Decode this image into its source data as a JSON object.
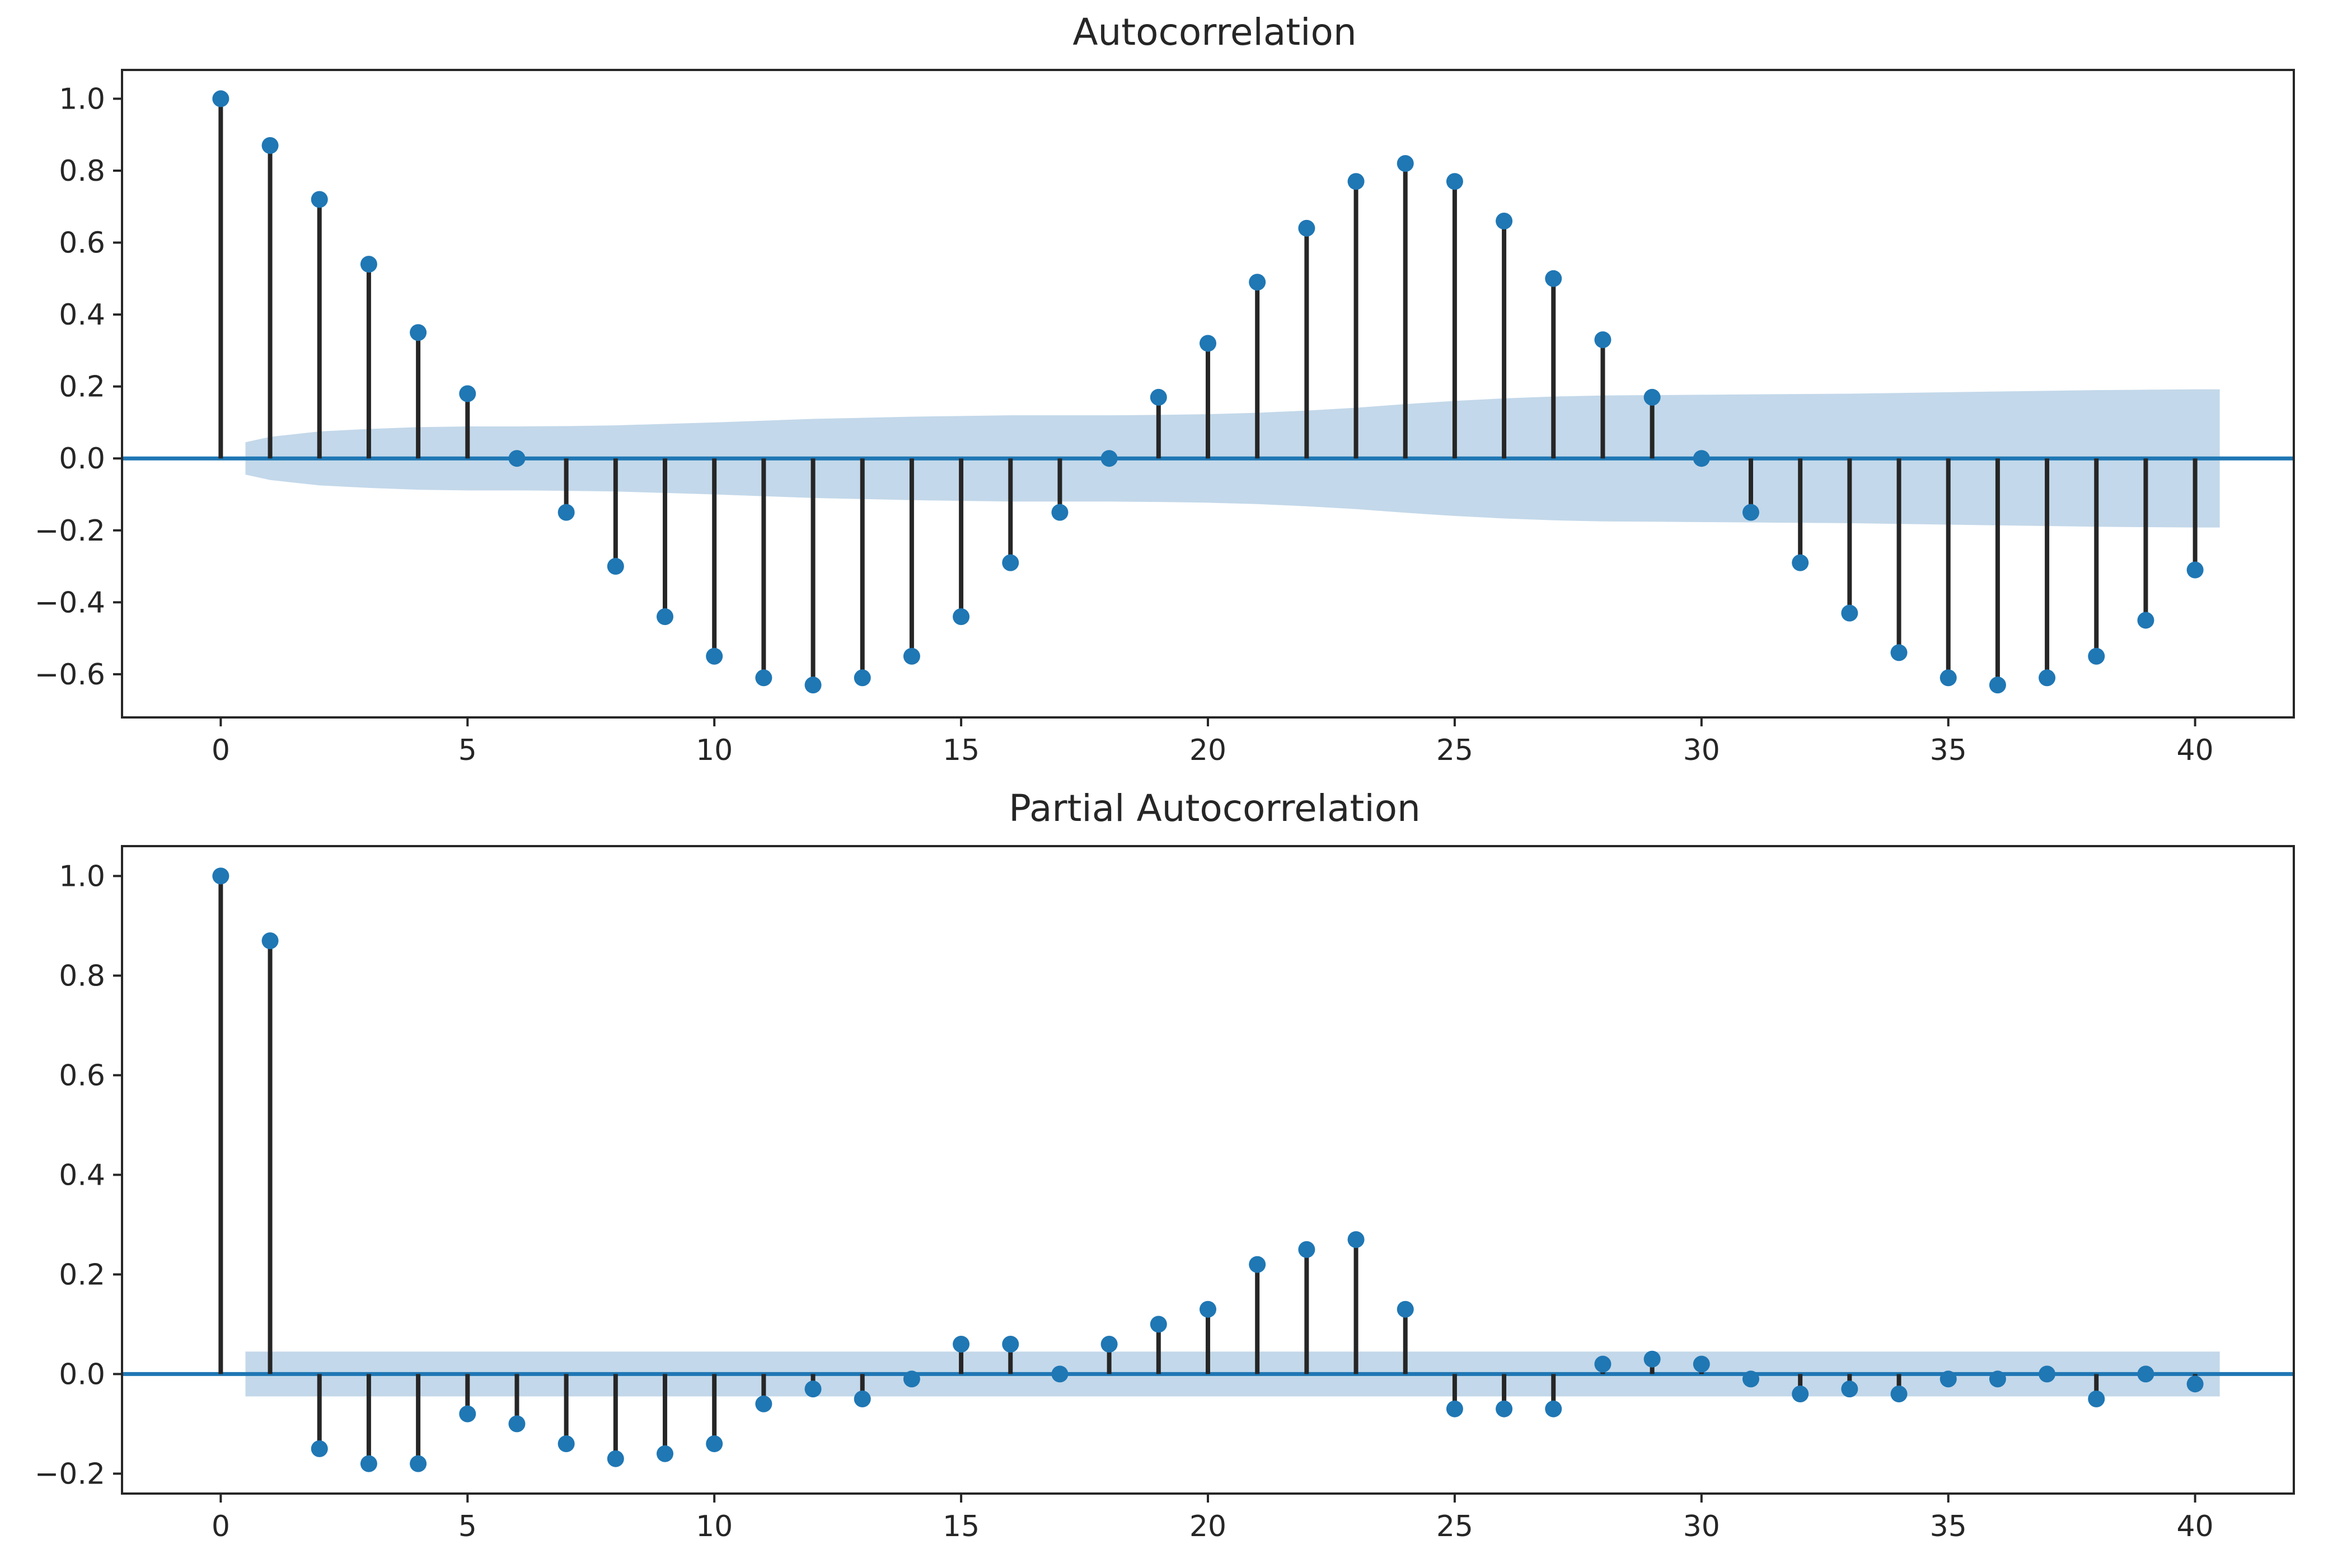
{
  "colors": {
    "marker": "#1f77b4",
    "stem": "#262626",
    "baseline": "#1f77b4",
    "band": "#c3d8ea",
    "axes": "#262626",
    "background": "#ffffff"
  },
  "chart_data": [
    {
      "type": "stem",
      "title": "Autocorrelation",
      "xlabel": "",
      "ylabel": "",
      "xlim": [
        -2,
        42
      ],
      "ylim": [
        -0.72,
        1.08
      ],
      "xticks": [
        0,
        5,
        10,
        15,
        20,
        25,
        30,
        35,
        40
      ],
      "yticks": [
        -0.6,
        -0.4,
        -0.2,
        0.0,
        0.2,
        0.4,
        0.6,
        0.8,
        1.0
      ],
      "ytick_labels": [
        "−0.6",
        "−0.4",
        "−0.2",
        "0.0",
        "0.2",
        "0.4",
        "0.6",
        "0.8",
        "1.0"
      ],
      "xtick_labels": [
        "0",
        "5",
        "10",
        "15",
        "20",
        "25",
        "30",
        "35",
        "40"
      ],
      "lags": [
        0,
        1,
        2,
        3,
        4,
        5,
        6,
        7,
        8,
        9,
        10,
        11,
        12,
        13,
        14,
        15,
        16,
        17,
        18,
        19,
        20,
        21,
        22,
        23,
        24,
        25,
        26,
        27,
        28,
        29,
        30,
        31,
        32,
        33,
        34,
        35,
        36,
        37,
        38,
        39,
        40
      ],
      "values": [
        1.0,
        0.87,
        0.72,
        0.54,
        0.35,
        0.18,
        0.0,
        -0.15,
        -0.3,
        -0.44,
        -0.55,
        -0.61,
        -0.63,
        -0.61,
        -0.55,
        -0.44,
        -0.29,
        -0.15,
        0.0,
        0.17,
        0.32,
        0.49,
        0.64,
        0.77,
        0.82,
        0.77,
        0.66,
        0.5,
        0.33,
        0.17,
        0.0,
        -0.15,
        -0.29,
        -0.43,
        -0.54,
        -0.61,
        -0.63,
        -0.61,
        -0.55,
        -0.45,
        -0.31
      ],
      "confidence_band": {
        "lags": [
          0.5,
          1,
          2,
          3,
          4,
          5,
          6,
          7,
          8,
          9,
          10,
          11,
          12,
          13,
          14,
          15,
          16,
          17,
          18,
          19,
          20,
          21,
          22,
          23,
          24,
          25,
          26,
          27,
          28,
          29,
          30,
          31,
          32,
          33,
          34,
          35,
          36,
          37,
          38,
          39,
          40,
          40.5
        ],
        "upper": [
          0.045,
          0.06,
          0.075,
          0.082,
          0.087,
          0.089,
          0.089,
          0.09,
          0.092,
          0.096,
          0.1,
          0.105,
          0.11,
          0.113,
          0.116,
          0.118,
          0.12,
          0.12,
          0.12,
          0.121,
          0.123,
          0.127,
          0.133,
          0.141,
          0.151,
          0.16,
          0.167,
          0.172,
          0.175,
          0.176,
          0.177,
          0.178,
          0.179,
          0.18,
          0.182,
          0.184,
          0.186,
          0.188,
          0.19,
          0.191,
          0.192,
          0.192
        ],
        "lower": [
          -0.045,
          -0.06,
          -0.075,
          -0.082,
          -0.087,
          -0.089,
          -0.089,
          -0.09,
          -0.092,
          -0.096,
          -0.1,
          -0.105,
          -0.11,
          -0.113,
          -0.116,
          -0.118,
          -0.12,
          -0.12,
          -0.12,
          -0.121,
          -0.123,
          -0.127,
          -0.133,
          -0.141,
          -0.151,
          -0.16,
          -0.167,
          -0.172,
          -0.175,
          -0.176,
          -0.177,
          -0.178,
          -0.179,
          -0.18,
          -0.182,
          -0.184,
          -0.186,
          -0.188,
          -0.19,
          -0.191,
          -0.192,
          -0.192
        ]
      },
      "grid": false,
      "legend": "none"
    },
    {
      "type": "stem",
      "title": "Partial Autocorrelation",
      "xlabel": "",
      "ylabel": "",
      "xlim": [
        -2,
        42
      ],
      "ylim": [
        -0.24,
        1.06
      ],
      "xticks": [
        0,
        5,
        10,
        15,
        20,
        25,
        30,
        35,
        40
      ],
      "yticks": [
        -0.2,
        0.0,
        0.2,
        0.4,
        0.6,
        0.8,
        1.0
      ],
      "ytick_labels": [
        "−0.2",
        "0.0",
        "0.2",
        "0.4",
        "0.6",
        "0.8",
        "1.0"
      ],
      "xtick_labels": [
        "0",
        "5",
        "10",
        "15",
        "20",
        "25",
        "30",
        "35",
        "40"
      ],
      "lags": [
        0,
        1,
        2,
        3,
        4,
        5,
        6,
        7,
        8,
        9,
        10,
        11,
        12,
        13,
        14,
        15,
        16,
        17,
        18,
        19,
        20,
        21,
        22,
        23,
        24,
        25,
        26,
        27,
        28,
        29,
        30,
        31,
        32,
        33,
        34,
        35,
        36,
        37,
        38,
        39,
        40
      ],
      "values": [
        1.0,
        0.87,
        -0.15,
        -0.18,
        -0.18,
        -0.08,
        -0.1,
        -0.14,
        -0.17,
        -0.16,
        -0.14,
        -0.06,
        -0.03,
        -0.05,
        -0.01,
        0.06,
        0.06,
        0.0,
        0.06,
        0.1,
        0.13,
        0.22,
        0.25,
        0.27,
        0.13,
        -0.07,
        -0.07,
        -0.07,
        0.02,
        0.03,
        0.02,
        -0.01,
        -0.04,
        -0.03,
        -0.04,
        -0.01,
        -0.01,
        0.0,
        -0.05,
        0.0,
        -0.02
      ],
      "confidence_band": {
        "lags": [
          0.5,
          40.5
        ],
        "upper": [
          0.045,
          0.045
        ],
        "lower": [
          -0.045,
          -0.045
        ]
      },
      "grid": false,
      "legend": "none"
    }
  ]
}
